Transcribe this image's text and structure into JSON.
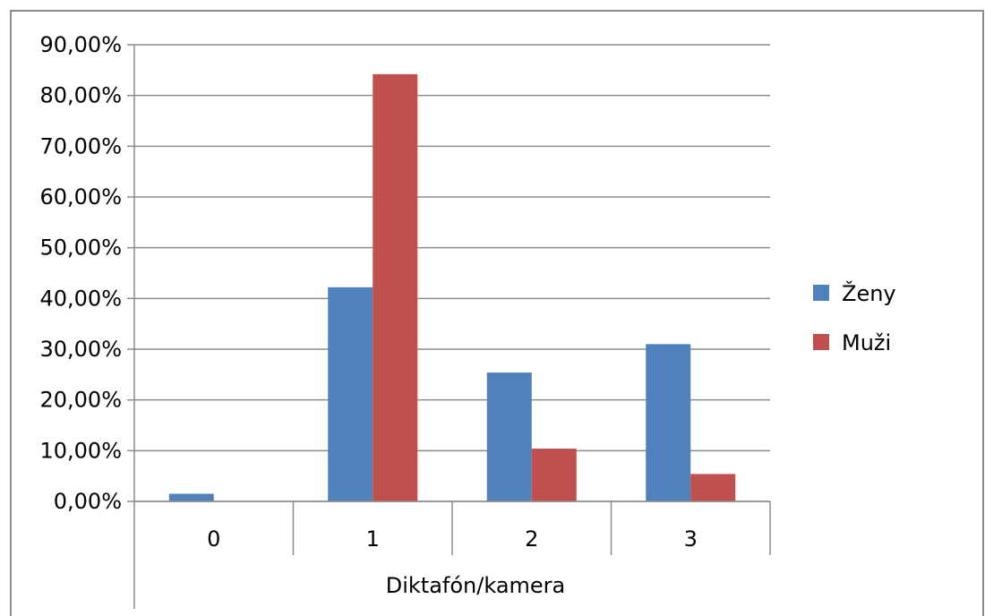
{
  "chart_data": {
    "type": "bar",
    "title": "",
    "xlabel": "Diktafón/kamera",
    "ylabel": "",
    "categories": [
      "0",
      "1",
      "2",
      "3"
    ],
    "series": [
      {
        "name": "Ženy",
        "color": "#4f81bd",
        "values": [
          1.5,
          42.2,
          25.4,
          31.0
        ]
      },
      {
        "name": "Muži",
        "color": "#c0504d",
        "values": [
          0,
          84.2,
          10.4,
          5.4
        ]
      }
    ],
    "ylim": [
      0,
      90
    ],
    "yticks": [
      0,
      10,
      20,
      30,
      40,
      50,
      60,
      70,
      80,
      90
    ],
    "ytick_labels": [
      "0,00%",
      "10,00%",
      "20,00%",
      "30,00%",
      "40,00%",
      "50,00%",
      "60,00%",
      "70,00%",
      "80,00%",
      "90,00%"
    ],
    "grid": true,
    "legend_position": "right"
  }
}
